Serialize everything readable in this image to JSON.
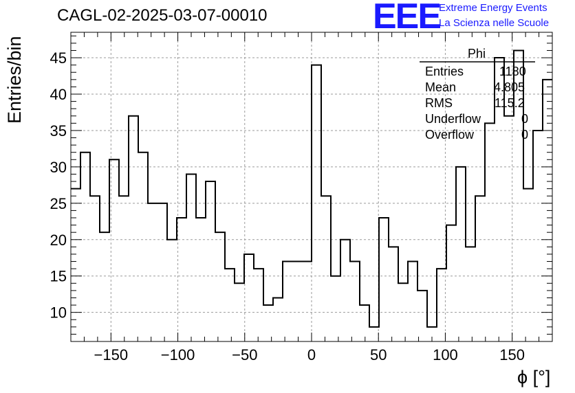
{
  "title": "CAGL-02-2025-03-07-00010",
  "logo": {
    "mark": "EEE",
    "line1": "Extreme Energy Events",
    "line2": "La Scienza nelle Scuole",
    "color": "#1a1aff"
  },
  "stats": {
    "name": "Phi",
    "rows": [
      {
        "label": "Entries",
        "value": "1180"
      },
      {
        "label": "Mean",
        "value": "4.805"
      },
      {
        "label": "RMS",
        "value": "115.2"
      },
      {
        "label": "Underflow",
        "value": "0"
      },
      {
        "label": "Overflow",
        "value": "0"
      }
    ]
  },
  "chart_data": {
    "type": "histogram",
    "title": "CAGL-02-2025-03-07-00010",
    "xlabel": "ϕ [°]",
    "ylabel": "Entries/bin",
    "xlim": [
      -180,
      180
    ],
    "ylim": [
      6,
      48.5
    ],
    "bin_width": 7.2,
    "grid": true,
    "xticks": [
      -150,
      -100,
      -50,
      0,
      50,
      100,
      150
    ],
    "xtick_labels": [
      "−150",
      "−100",
      "−50",
      "0",
      "50",
      "100",
      "150"
    ],
    "yticks": [
      10,
      15,
      20,
      25,
      30,
      35,
      40,
      45
    ],
    "values": [
      27,
      32,
      26,
      21,
      31,
      26,
      37,
      32,
      25,
      25,
      20,
      23,
      29,
      23,
      28,
      21,
      16,
      14,
      18,
      16,
      11,
      12,
      17,
      17,
      17,
      44,
      26,
      15,
      20,
      17,
      11,
      8,
      23,
      19,
      14,
      17,
      13,
      8,
      16,
      22,
      30,
      19,
      26,
      36,
      45,
      37,
      46,
      27,
      35,
      42
    ]
  }
}
